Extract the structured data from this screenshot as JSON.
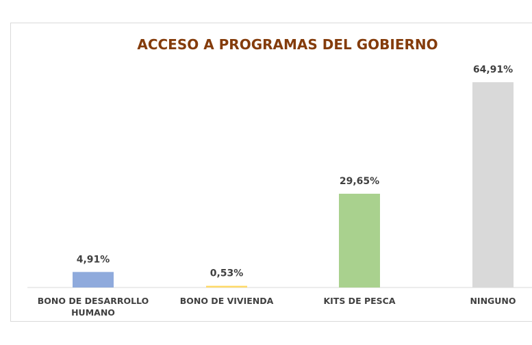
{
  "chart_data": {
    "type": "bar",
    "title": "ACCESO A PROGRAMAS DEL GOBIERNO",
    "categories": [
      "BONO DE DESARROLLO HUMANO",
      "BONO DE VIVIENDA",
      "KITS DE PESCA",
      "NINGUNO"
    ],
    "values": [
      4.91,
      0.53,
      29.65,
      64.91
    ],
    "value_labels": [
      "4,91%",
      "0,53%",
      "29,65%",
      "64,91%"
    ],
    "colors": [
      "#8faadc",
      "#ffd966",
      "#a9d18e",
      "#d9d9d9"
    ]
  }
}
